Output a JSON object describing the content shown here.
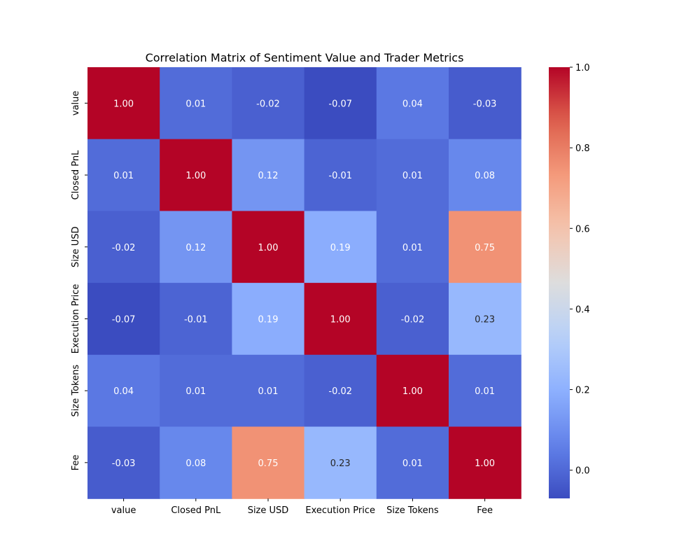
{
  "chart_data": {
    "type": "heatmap",
    "title": "Correlation Matrix of Sentiment Value and Trader Metrics",
    "row_labels": [
      "value",
      "Closed PnL",
      "Size USD",
      "Execution Price",
      "Size Tokens",
      "Fee"
    ],
    "col_labels": [
      "value",
      "Closed PnL",
      "Size USD",
      "Execution Price",
      "Size Tokens",
      "Fee"
    ],
    "values": [
      [
        1.0,
        0.01,
        -0.02,
        -0.07,
        0.04,
        -0.03
      ],
      [
        0.01,
        1.0,
        0.12,
        -0.01,
        0.01,
        0.08
      ],
      [
        -0.02,
        0.12,
        1.0,
        0.19,
        0.01,
        0.75
      ],
      [
        -0.07,
        -0.01,
        0.19,
        1.0,
        -0.02,
        0.23
      ],
      [
        0.04,
        0.01,
        0.01,
        -0.02,
        1.0,
        0.01
      ],
      [
        -0.03,
        0.08,
        0.75,
        0.23,
        0.01,
        1.0
      ]
    ],
    "cell_labels": [
      [
        "1.00",
        "0.01",
        "-0.02",
        "-0.07",
        "0.04",
        "-0.03"
      ],
      [
        "0.01",
        "1.00",
        "0.12",
        "-0.01",
        "0.01",
        "0.08"
      ],
      [
        "-0.02",
        "0.12",
        "1.00",
        "0.19",
        "0.01",
        "0.75"
      ],
      [
        "-0.07",
        "-0.01",
        "0.19",
        "1.00",
        "-0.02",
        "0.23"
      ],
      [
        "0.04",
        "0.01",
        "0.01",
        "-0.02",
        "1.00",
        "0.01"
      ],
      [
        "-0.03",
        "0.08",
        "0.75",
        "0.23",
        "0.01",
        "1.00"
      ]
    ],
    "colormap": "coolwarm",
    "vmin": -0.07,
    "vmax": 1.0,
    "colorbar_ticks": [
      0.0,
      0.2,
      0.4,
      0.6,
      0.8,
      1.0
    ],
    "colorbar_tick_labels": [
      "0.0",
      "0.2",
      "0.4",
      "0.6",
      "0.8",
      "1.0"
    ],
    "colorbar_position": "right",
    "grid": false
  }
}
